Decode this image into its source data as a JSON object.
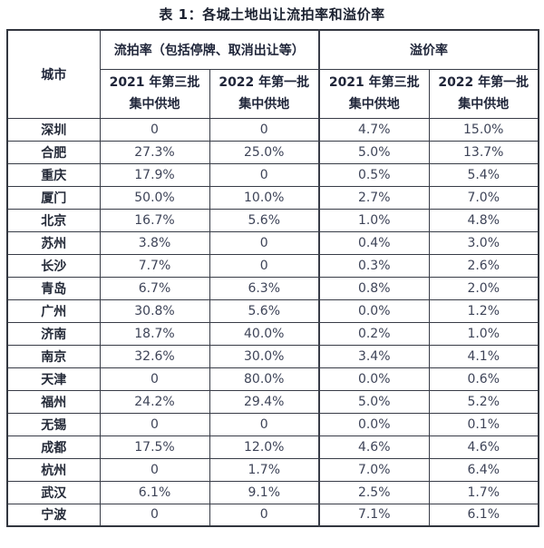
{
  "title": "表 1：各城土地出让流拍率和溢价率",
  "table": {
    "corner_header": "城市",
    "group_headers": {
      "failure_rate": "流拍率（包括停牌、取消出让等）",
      "premium_rate": "溢价率"
    },
    "sub_headers": [
      "2021 年第三批\n集中供地",
      "2022 年第一批\n集中供地",
      "2021 年第三批\n集中供地",
      "2022 年第一批\n集中供地"
    ]
  },
  "chart_data": {
    "type": "table",
    "title": "表 1：各城土地出让流拍率和溢价率",
    "columns": [
      "城市",
      "流拍率 2021年第三批集中供地",
      "流拍率 2022年第一批集中供地",
      "溢价率 2021年第三批集中供地",
      "溢价率 2022年第一批集中供地"
    ],
    "rows": [
      [
        "深圳",
        "0",
        "0",
        "4.7%",
        "15.0%"
      ],
      [
        "合肥",
        "27.3%",
        "25.0%",
        "5.0%",
        "13.7%"
      ],
      [
        "重庆",
        "17.9%",
        "0",
        "0.5%",
        "5.4%"
      ],
      [
        "厦门",
        "50.0%",
        "10.0%",
        "2.7%",
        "7.0%"
      ],
      [
        "北京",
        "16.7%",
        "5.6%",
        "1.0%",
        "4.8%"
      ],
      [
        "苏州",
        "3.8%",
        "0",
        "0.4%",
        "3.0%"
      ],
      [
        "长沙",
        "7.7%",
        "0",
        "0.3%",
        "2.6%"
      ],
      [
        "青岛",
        "6.7%",
        "6.3%",
        "0.8%",
        "2.0%"
      ],
      [
        "广州",
        "30.8%",
        "5.6%",
        "0.0%",
        "1.2%"
      ],
      [
        "济南",
        "18.7%",
        "40.0%",
        "0.2%",
        "1.0%"
      ],
      [
        "南京",
        "32.6%",
        "30.0%",
        "3.4%",
        "4.1%"
      ],
      [
        "天津",
        "0",
        "80.0%",
        "0.0%",
        "0.6%"
      ],
      [
        "福州",
        "24.2%",
        "29.4%",
        "5.0%",
        "5.2%"
      ],
      [
        "无锡",
        "0",
        "0",
        "0.0%",
        "0.1%"
      ],
      [
        "成都",
        "17.5%",
        "12.0%",
        "4.6%",
        "4.6%"
      ],
      [
        "杭州",
        "0",
        "1.7%",
        "7.0%",
        "6.4%"
      ],
      [
        "武汉",
        "6.1%",
        "9.1%",
        "2.5%",
        "1.7%"
      ],
      [
        "宁波",
        "0",
        "0",
        "7.1%",
        "6.1%"
      ]
    ]
  },
  "colors": {
    "background": "#ffffff",
    "title_text": "#1b2130",
    "header_text": "#20263a",
    "city_text": "#242a38",
    "value_text": "#3e4458",
    "border": "#383c47"
  }
}
